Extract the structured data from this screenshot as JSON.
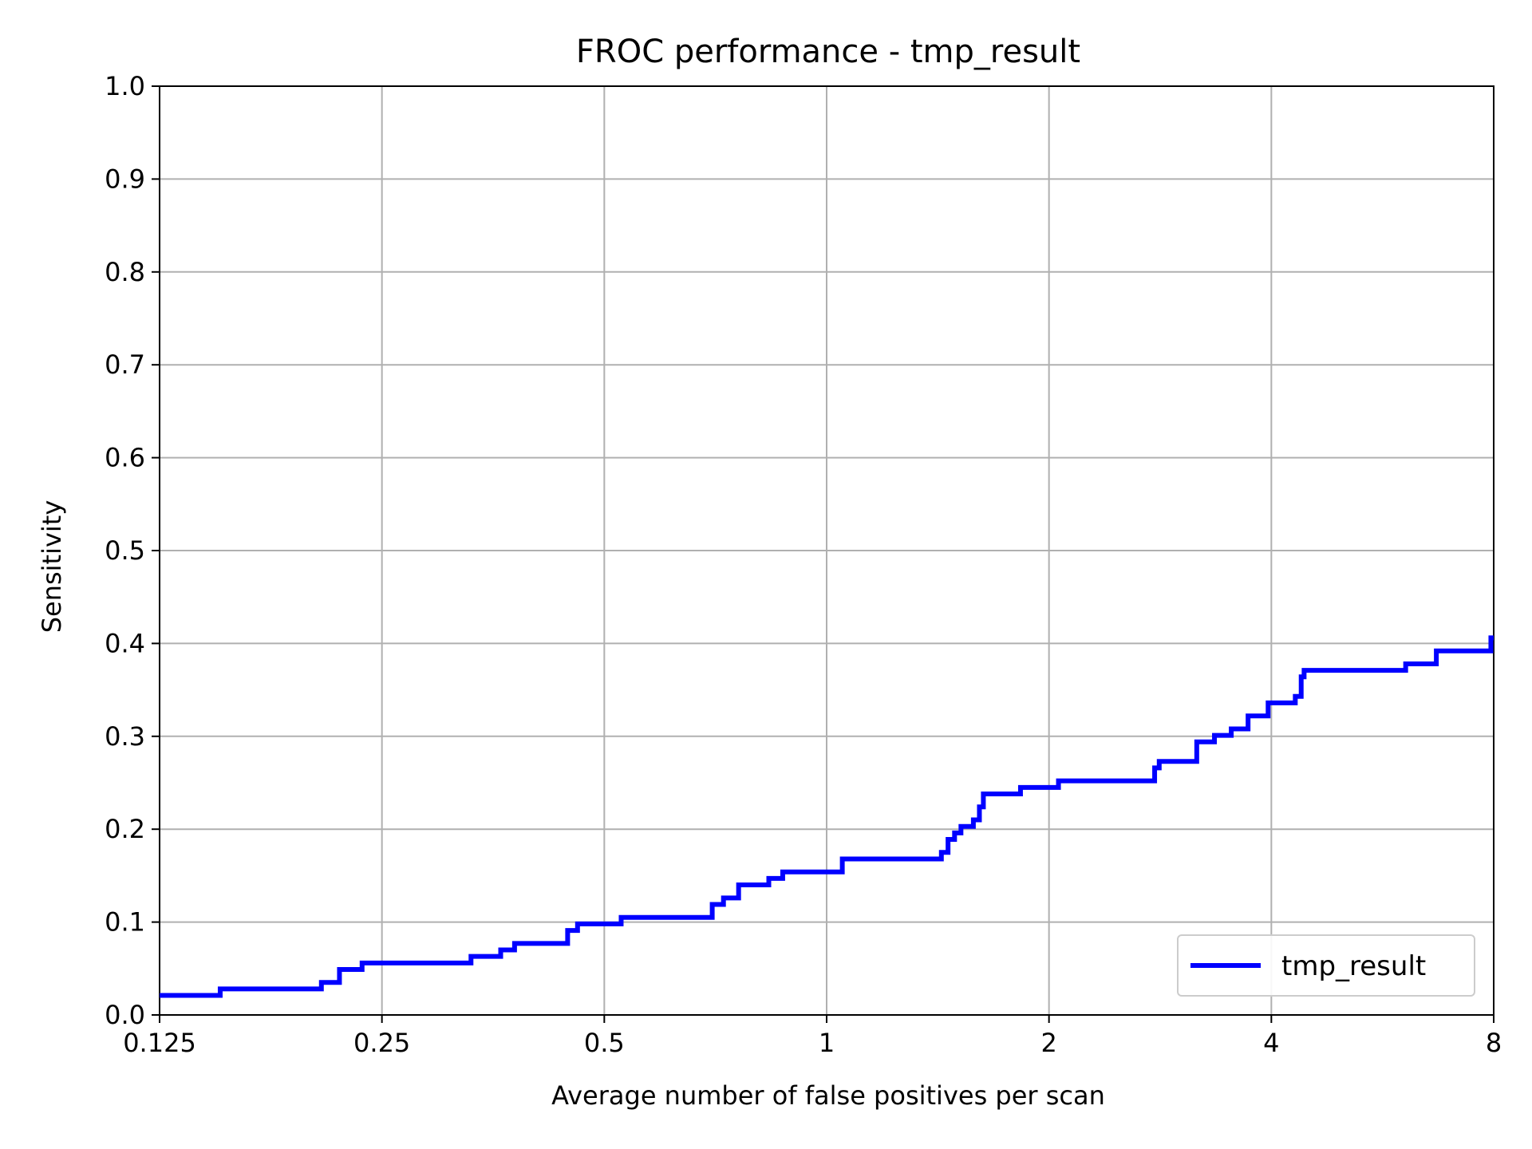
{
  "chart_data": {
    "type": "line",
    "title": "FROC performance - tmp_result",
    "xlabel": "Average number of false positives per scan",
    "ylabel": "Sensitivity",
    "x_scale": "log2",
    "xlim": [
      0.125,
      8
    ],
    "ylim": [
      0,
      1.0
    ],
    "xticks": [
      0.125,
      0.25,
      0.5,
      1,
      2,
      4,
      8
    ],
    "xtick_labels": [
      "0.125",
      "0.25",
      "0.5",
      "1",
      "2",
      "4",
      "8"
    ],
    "yticks": [
      0,
      0.1,
      0.2,
      0.3,
      0.4,
      0.5,
      0.6,
      0.7,
      0.8,
      0.9,
      1.0
    ],
    "ytick_labels": [
      "0.0",
      "0.1",
      "0.2",
      "0.3",
      "0.4",
      "0.5",
      "0.6",
      "0.7",
      "0.8",
      "0.9",
      "1.0"
    ],
    "grid": true,
    "legend_position": "lower right",
    "step": true,
    "series": [
      {
        "name": "tmp_result",
        "color": "#0000ff",
        "x": [
          0.125,
          0.151,
          0.207,
          0.219,
          0.235,
          0.33,
          0.362,
          0.378,
          0.446,
          0.46,
          0.527,
          0.7,
          0.725,
          0.76,
          0.835,
          0.872,
          1.05,
          1.43,
          1.46,
          1.49,
          1.52,
          1.58,
          1.61,
          1.63,
          1.83,
          2.06,
          2.78,
          2.82,
          3.17,
          3.35,
          3.53,
          3.72,
          3.96,
          4.31,
          4.39,
          4.43,
          6.08,
          6.69,
          7.93,
          8.0
        ],
        "y": [
          0.021,
          0.028,
          0.035,
          0.049,
          0.056,
          0.063,
          0.07,
          0.077,
          0.091,
          0.098,
          0.105,
          0.119,
          0.126,
          0.14,
          0.147,
          0.154,
          0.168,
          0.175,
          0.189,
          0.196,
          0.203,
          0.21,
          0.224,
          0.238,
          0.245,
          0.252,
          0.266,
          0.273,
          0.294,
          0.301,
          0.308,
          0.322,
          0.336,
          0.343,
          0.364,
          0.371,
          0.378,
          0.392,
          0.406,
          0.406
        ]
      }
    ]
  }
}
